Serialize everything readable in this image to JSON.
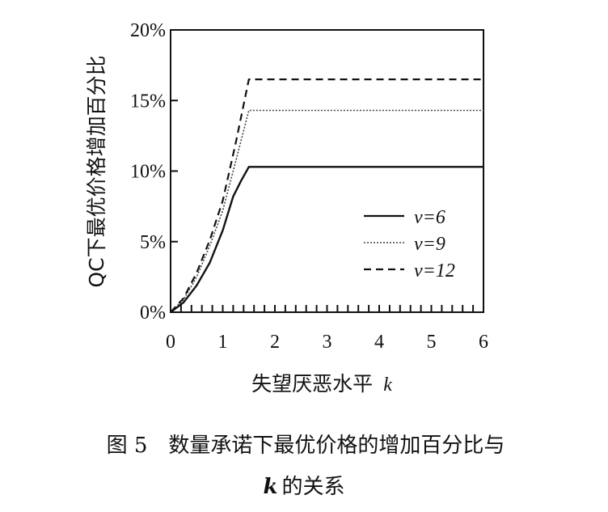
{
  "chart_data": {
    "type": "line",
    "title": "",
    "xlabel": "失望厌恶水平",
    "xlabel_var": "k",
    "ylabel": "QC下最优价格增加百分比",
    "xlim": [
      0,
      6
    ],
    "ylim": [
      0,
      20
    ],
    "x_ticks": [
      0,
      1,
      2,
      3,
      4,
      5,
      6
    ],
    "x_tick_labels": [
      "0",
      "1",
      "2",
      "3",
      "4",
      "5",
      "6"
    ],
    "y_ticks": [
      0,
      5,
      10,
      15,
      20
    ],
    "y_tick_labels": [
      "0%",
      "5%",
      "10%",
      "15%",
      "20%"
    ],
    "legend_position": "right",
    "grid": false,
    "series": [
      {
        "name": "v=6",
        "style": "solid",
        "x": [
          0,
          0.25,
          0.5,
          0.75,
          1.0,
          1.2,
          1.35,
          1.5,
          2,
          3,
          4,
          5,
          6
        ],
        "y": [
          0,
          0.7,
          1.9,
          3.5,
          5.8,
          8.2,
          9.3,
          10.3,
          10.3,
          10.3,
          10.3,
          10.3,
          10.3
        ]
      },
      {
        "name": "v=9",
        "style": "dotted",
        "x": [
          0,
          0.25,
          0.5,
          0.75,
          1.0,
          1.25,
          1.5,
          2,
          3,
          4,
          5,
          6
        ],
        "y": [
          0,
          0.9,
          2.5,
          4.7,
          7.2,
          10.7,
          14.3,
          14.3,
          14.3,
          14.3,
          14.3,
          14.3
        ]
      },
      {
        "name": "v=12",
        "style": "dashed",
        "x": [
          0,
          0.25,
          0.5,
          0.75,
          1.0,
          1.25,
          1.5,
          2,
          3,
          4,
          5,
          6
        ],
        "y": [
          0,
          1.0,
          2.8,
          5.1,
          7.9,
          12.0,
          16.5,
          16.5,
          16.5,
          16.5,
          16.5,
          16.5
        ]
      }
    ]
  },
  "caption": {
    "line1": "图 5　数量承诺下最优价格的增加百分比与",
    "line2_var": "k",
    "line2_text": " 的关系"
  }
}
